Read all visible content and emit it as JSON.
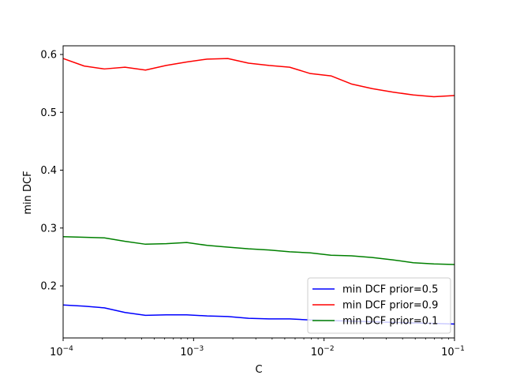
{
  "chart_data": {
    "type": "line",
    "title": "",
    "xlabel": "C",
    "ylabel": "min DCF",
    "xscale": "log",
    "xlim": [
      0.0001,
      0.1
    ],
    "ylim": [
      0.11,
      0.615
    ],
    "legend_position": "lower-right",
    "grid": false,
    "x": [
      0.0001,
      0.000145,
      0.000207,
      0.000298,
      0.000428,
      0.000616,
      0.000886,
      0.00127,
      0.00183,
      0.00264,
      0.00379,
      0.00545,
      0.00785,
      0.0113,
      0.0162,
      0.0234,
      0.0336,
      0.0483,
      0.0695,
      0.1
    ],
    "series": [
      {
        "name": "min DCF prior=0.5",
        "color": "#0000ff",
        "values": [
          0.167,
          0.165,
          0.162,
          0.154,
          0.149,
          0.15,
          0.15,
          0.148,
          0.147,
          0.144,
          0.143,
          0.143,
          0.141,
          0.14,
          0.139,
          0.138,
          0.137,
          0.136,
          0.135,
          0.134
        ]
      },
      {
        "name": "min DCF prior=0.9",
        "color": "#ff0000",
        "values": [
          0.593,
          0.58,
          0.575,
          0.578,
          0.573,
          0.581,
          0.587,
          0.592,
          0.593,
          0.585,
          0.581,
          0.578,
          0.567,
          0.563,
          0.549,
          0.541,
          0.535,
          0.53,
          0.527,
          0.529
        ]
      },
      {
        "name": "min DCF prior=0.1",
        "color": "#008000",
        "values": [
          0.285,
          0.284,
          0.283,
          0.277,
          0.272,
          0.273,
          0.275,
          0.27,
          0.267,
          0.264,
          0.262,
          0.259,
          0.257,
          0.253,
          0.252,
          0.249,
          0.245,
          0.24,
          0.238,
          0.237
        ]
      }
    ],
    "x_ticks": [
      {
        "value": 0.0001,
        "base": "10",
        "exp": "−4"
      },
      {
        "value": 0.001,
        "base": "10",
        "exp": "−3"
      },
      {
        "value": 0.01,
        "base": "10",
        "exp": "−2"
      },
      {
        "value": 0.1,
        "base": "10",
        "exp": "−1"
      }
    ],
    "y_ticks": [
      {
        "value": 0.2,
        "label": "0.2"
      },
      {
        "value": 0.3,
        "label": "0.3"
      },
      {
        "value": 0.4,
        "label": "0.4"
      },
      {
        "value": 0.5,
        "label": "0.5"
      },
      {
        "value": 0.6,
        "label": "0.6"
      }
    ]
  }
}
